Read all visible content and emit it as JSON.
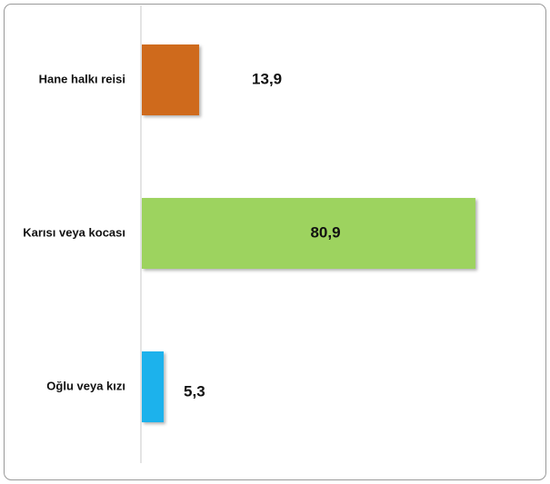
{
  "chart_data": {
    "type": "bar",
    "orientation": "horizontal",
    "categories": [
      "Hane halkı reisi",
      "Karısı veya kocası",
      "Oğlu veya kızı"
    ],
    "values": [
      13.9,
      80.9,
      5.3
    ],
    "value_labels": [
      "13,9",
      "80,9",
      "5,3"
    ],
    "colors": [
      "#cf6a1c",
      "#9dd35e",
      "#1bb2ec"
    ]
  }
}
